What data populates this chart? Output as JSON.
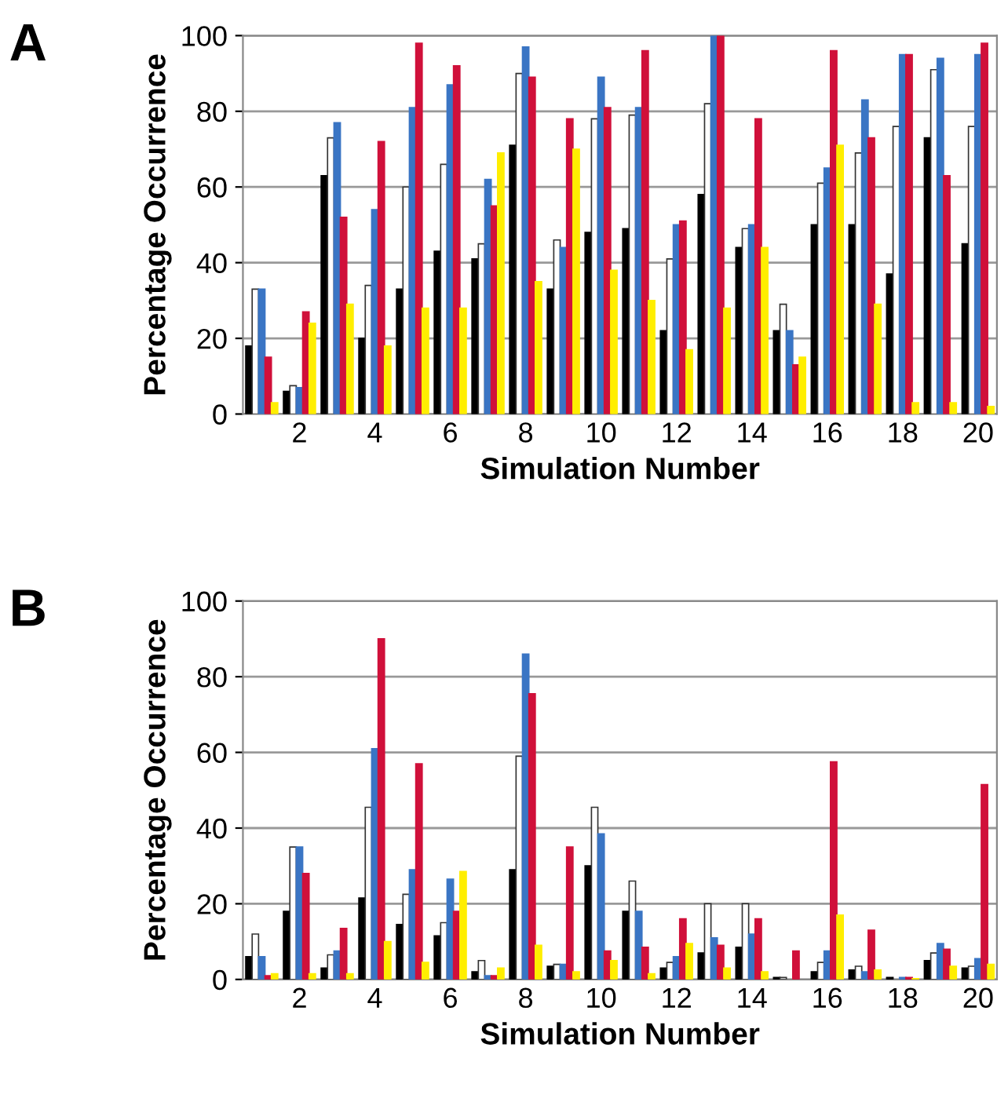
{
  "chart_data": [
    {
      "type": "bar",
      "title": "A",
      "xlabel": "Simulation Number",
      "ylabel": "Percentage Occurrence",
      "categories": [
        null,
        "2",
        null,
        "4",
        null,
        "6",
        null,
        "8",
        null,
        "10",
        null,
        "12",
        null,
        "14",
        null,
        "16",
        null,
        "18",
        null,
        "20"
      ],
      "ylim": [
        0,
        100
      ],
      "yticks": [
        0,
        20,
        40,
        60,
        80,
        100
      ],
      "grid": "y",
      "series": [
        {
          "color": "#000000",
          "values": [
            18,
            6,
            63,
            20,
            33,
            43,
            41,
            71,
            33,
            48,
            49,
            22,
            58,
            44,
            22,
            50,
            50,
            37,
            73,
            45
          ]
        },
        {
          "color": "#ffffff",
          "values": [
            33,
            7.5,
            73,
            34,
            60,
            66,
            45,
            90,
            46,
            78,
            79,
            41,
            82,
            49,
            29,
            61,
            69,
            76,
            91,
            76
          ]
        },
        {
          "color": "#3a75c4",
          "values": [
            33,
            7,
            77,
            54,
            81,
            87,
            62,
            97,
            44,
            89,
            81,
            50,
            100,
            50,
            22,
            65,
            83,
            95,
            94,
            95
          ]
        },
        {
          "color": "#d0103a",
          "values": [
            15,
            27,
            52,
            72,
            98,
            92,
            55,
            89,
            78,
            81,
            96,
            51,
            100,
            78,
            13,
            96,
            73,
            95,
            63,
            98
          ]
        },
        {
          "color": "#ffee00",
          "values": [
            3,
            24,
            29,
            18,
            28,
            28,
            69,
            35,
            70,
            38,
            30,
            17,
            28,
            44,
            15,
            71,
            29,
            3,
            3,
            2
          ]
        }
      ]
    },
    {
      "type": "bar",
      "title": "B",
      "xlabel": "Simulation Number",
      "ylabel": "Percentage Occurrence",
      "categories": [
        null,
        "2",
        null,
        "4",
        null,
        "6",
        null,
        "8",
        null,
        "10",
        null,
        "12",
        null,
        "14",
        null,
        "16",
        null,
        "18",
        null,
        "20"
      ],
      "ylim": [
        0,
        100
      ],
      "yticks": [
        0,
        20,
        40,
        60,
        80,
        100
      ],
      "grid": "y",
      "series": [
        {
          "color": "#000000",
          "values": [
            6,
            18,
            3,
            21.5,
            14.5,
            11.5,
            2,
            29,
            3.5,
            30,
            18,
            3,
            7,
            8.5,
            0.5,
            2,
            2.5,
            0.5,
            5,
            3
          ]
        },
        {
          "color": "#ffffff",
          "values": [
            12,
            35,
            6.5,
            45.5,
            22.5,
            15,
            5,
            59,
            4,
            45.5,
            26,
            4.5,
            20,
            20,
            0.5,
            4.5,
            3.5,
            null,
            7,
            3.5
          ]
        },
        {
          "color": "#3a75c4",
          "values": [
            6,
            35,
            7.5,
            61,
            29,
            26.5,
            1,
            86,
            4,
            38.5,
            18,
            6,
            11,
            12,
            null,
            7.5,
            2,
            0.5,
            9.5,
            5.5
          ]
        },
        {
          "color": "#d0103a",
          "values": [
            1,
            28,
            13.5,
            90,
            57,
            18,
            1,
            75.5,
            35,
            7.5,
            8.5,
            16,
            9,
            16,
            7.5,
            57.5,
            13,
            0.5,
            8,
            51.5
          ]
        },
        {
          "color": "#ffee00",
          "values": [
            1.5,
            1.5,
            1.5,
            10,
            4.5,
            28.5,
            3,
            9,
            2,
            5,
            1.5,
            9.5,
            3,
            2,
            null,
            17,
            2.5,
            0.2,
            3.5,
            4
          ]
        }
      ]
    }
  ]
}
